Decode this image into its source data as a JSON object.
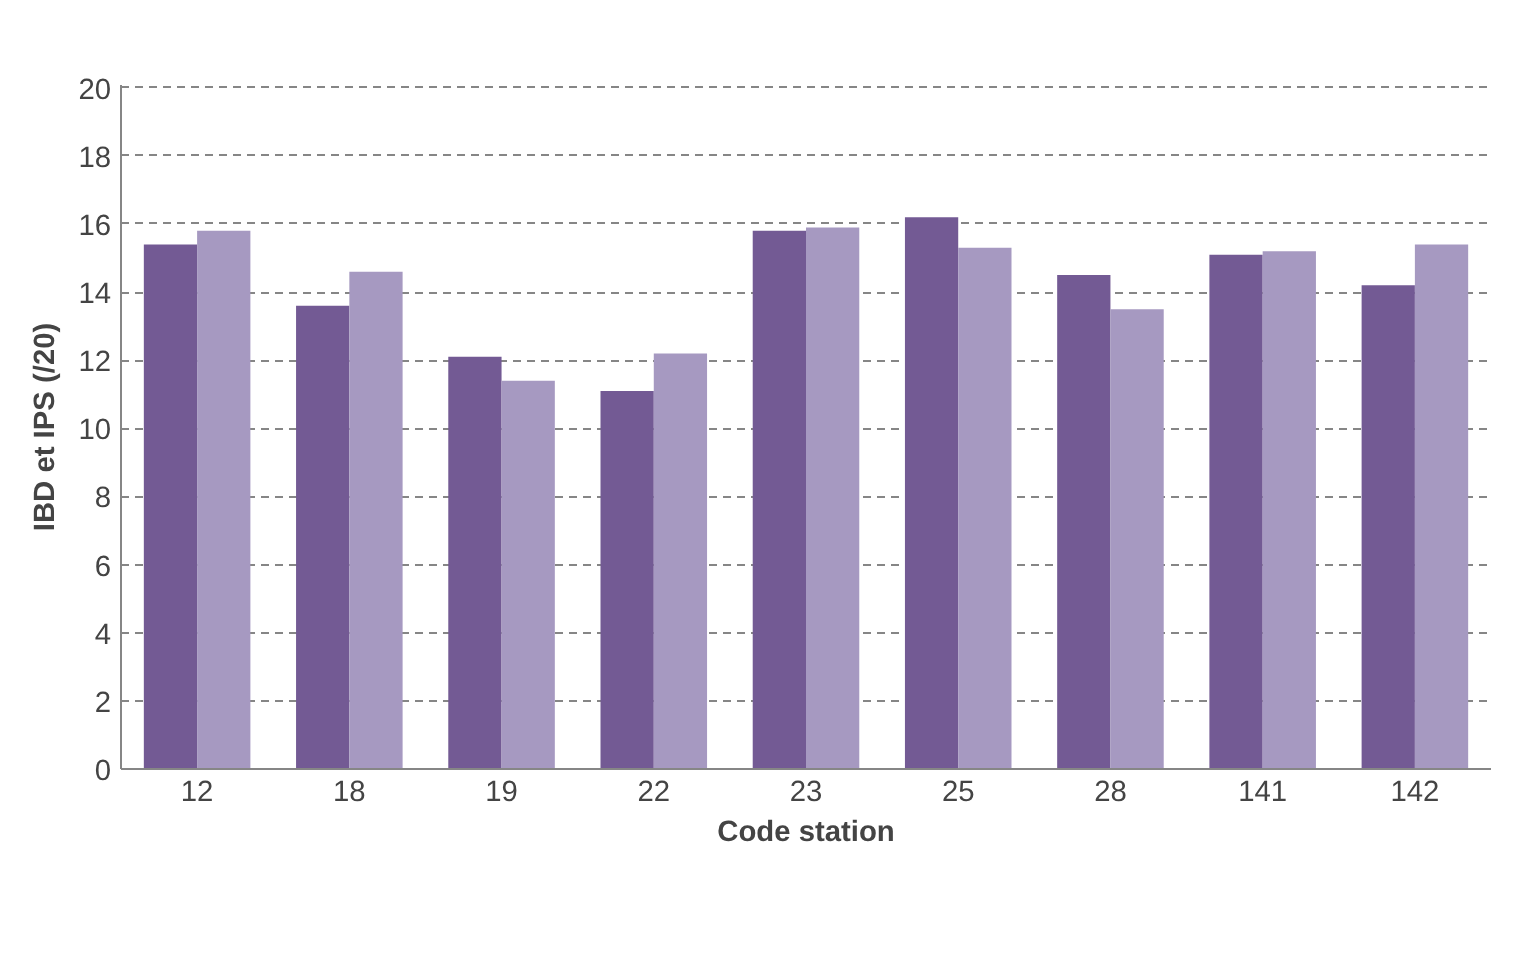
{
  "chart_data": {
    "type": "bar",
    "xlabel": "Code station",
    "ylabel": "IBD et IPS (/20)",
    "categories": [
      "12",
      "18",
      "19",
      "22",
      "23",
      "25",
      "28",
      "141",
      "142"
    ],
    "series": [
      {
        "color": "#735a94",
        "values": [
          15.4,
          13.6,
          12.1,
          11.1,
          15.8,
          16.2,
          14.5,
          15.1,
          14.2
        ]
      },
      {
        "color": "#a699c1",
        "values": [
          15.8,
          14.6,
          11.4,
          12.2,
          15.9,
          15.3,
          13.5,
          15.2,
          15.4
        ]
      }
    ],
    "ylim": [
      0,
      20
    ],
    "yticks": [
      0,
      2,
      4,
      6,
      8,
      10,
      12,
      14,
      16,
      18,
      20
    ],
    "grid": "y"
  }
}
